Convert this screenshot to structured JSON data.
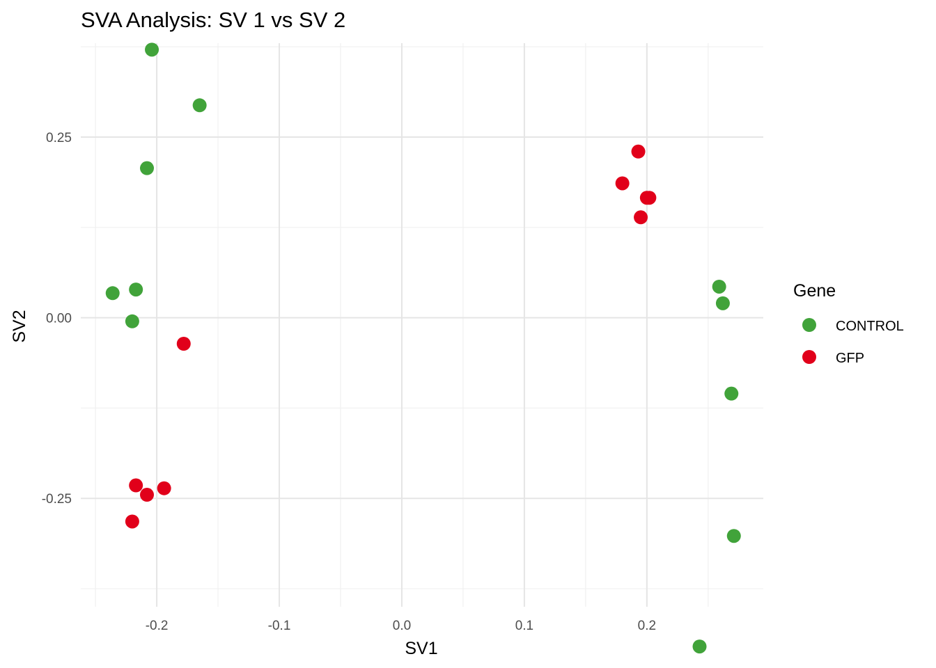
{
  "chart_data": {
    "type": "scatter",
    "title": "SVA Analysis: SV 1  vs SV 2",
    "xlabel": "SV1",
    "ylabel": "SV2",
    "xlim": [
      -0.262,
      0.295
    ],
    "ylim": [
      -0.4,
      0.38
    ],
    "x_ticks": [
      -0.2,
      -0.1,
      0.0,
      0.1,
      0.2
    ],
    "x_tick_labels": [
      "-0.2",
      "-0.1",
      "0.0",
      "0.1",
      "0.2"
    ],
    "y_ticks": [
      -0.25,
      0.0,
      0.25
    ],
    "y_tick_labels": [
      "-0.25",
      "0.00",
      "0.25"
    ],
    "x_minor_ticks": [
      -0.25,
      -0.15,
      -0.05,
      0.05,
      0.15,
      0.25
    ],
    "y_minor_ticks": [
      -0.375,
      -0.125,
      0.125,
      0.375
    ],
    "grid": true,
    "legend": {
      "title": "Gene",
      "position": "right"
    },
    "series": [
      {
        "name": "CONTROL",
        "color": "#41a33a",
        "points": [
          [
            -0.204,
            0.371
          ],
          [
            -0.165,
            0.294
          ],
          [
            -0.208,
            0.207
          ],
          [
            -0.236,
            0.034
          ],
          [
            -0.217,
            0.039
          ],
          [
            -0.22,
            -0.005
          ],
          [
            0.259,
            0.043
          ],
          [
            0.262,
            0.02
          ],
          [
            0.269,
            -0.105
          ],
          [
            0.271,
            -0.302
          ],
          [
            0.243,
            -0.455
          ]
        ]
      },
      {
        "name": "GFP",
        "color": "#e1001a",
        "points": [
          [
            0.193,
            0.23
          ],
          [
            0.18,
            0.186
          ],
          [
            0.2,
            0.166
          ],
          [
            0.202,
            0.166
          ],
          [
            0.195,
            0.139
          ],
          [
            -0.178,
            -0.036
          ],
          [
            -0.217,
            -0.232
          ],
          [
            -0.194,
            -0.236
          ],
          [
            -0.208,
            -0.245
          ],
          [
            -0.22,
            -0.282
          ]
        ]
      }
    ]
  }
}
